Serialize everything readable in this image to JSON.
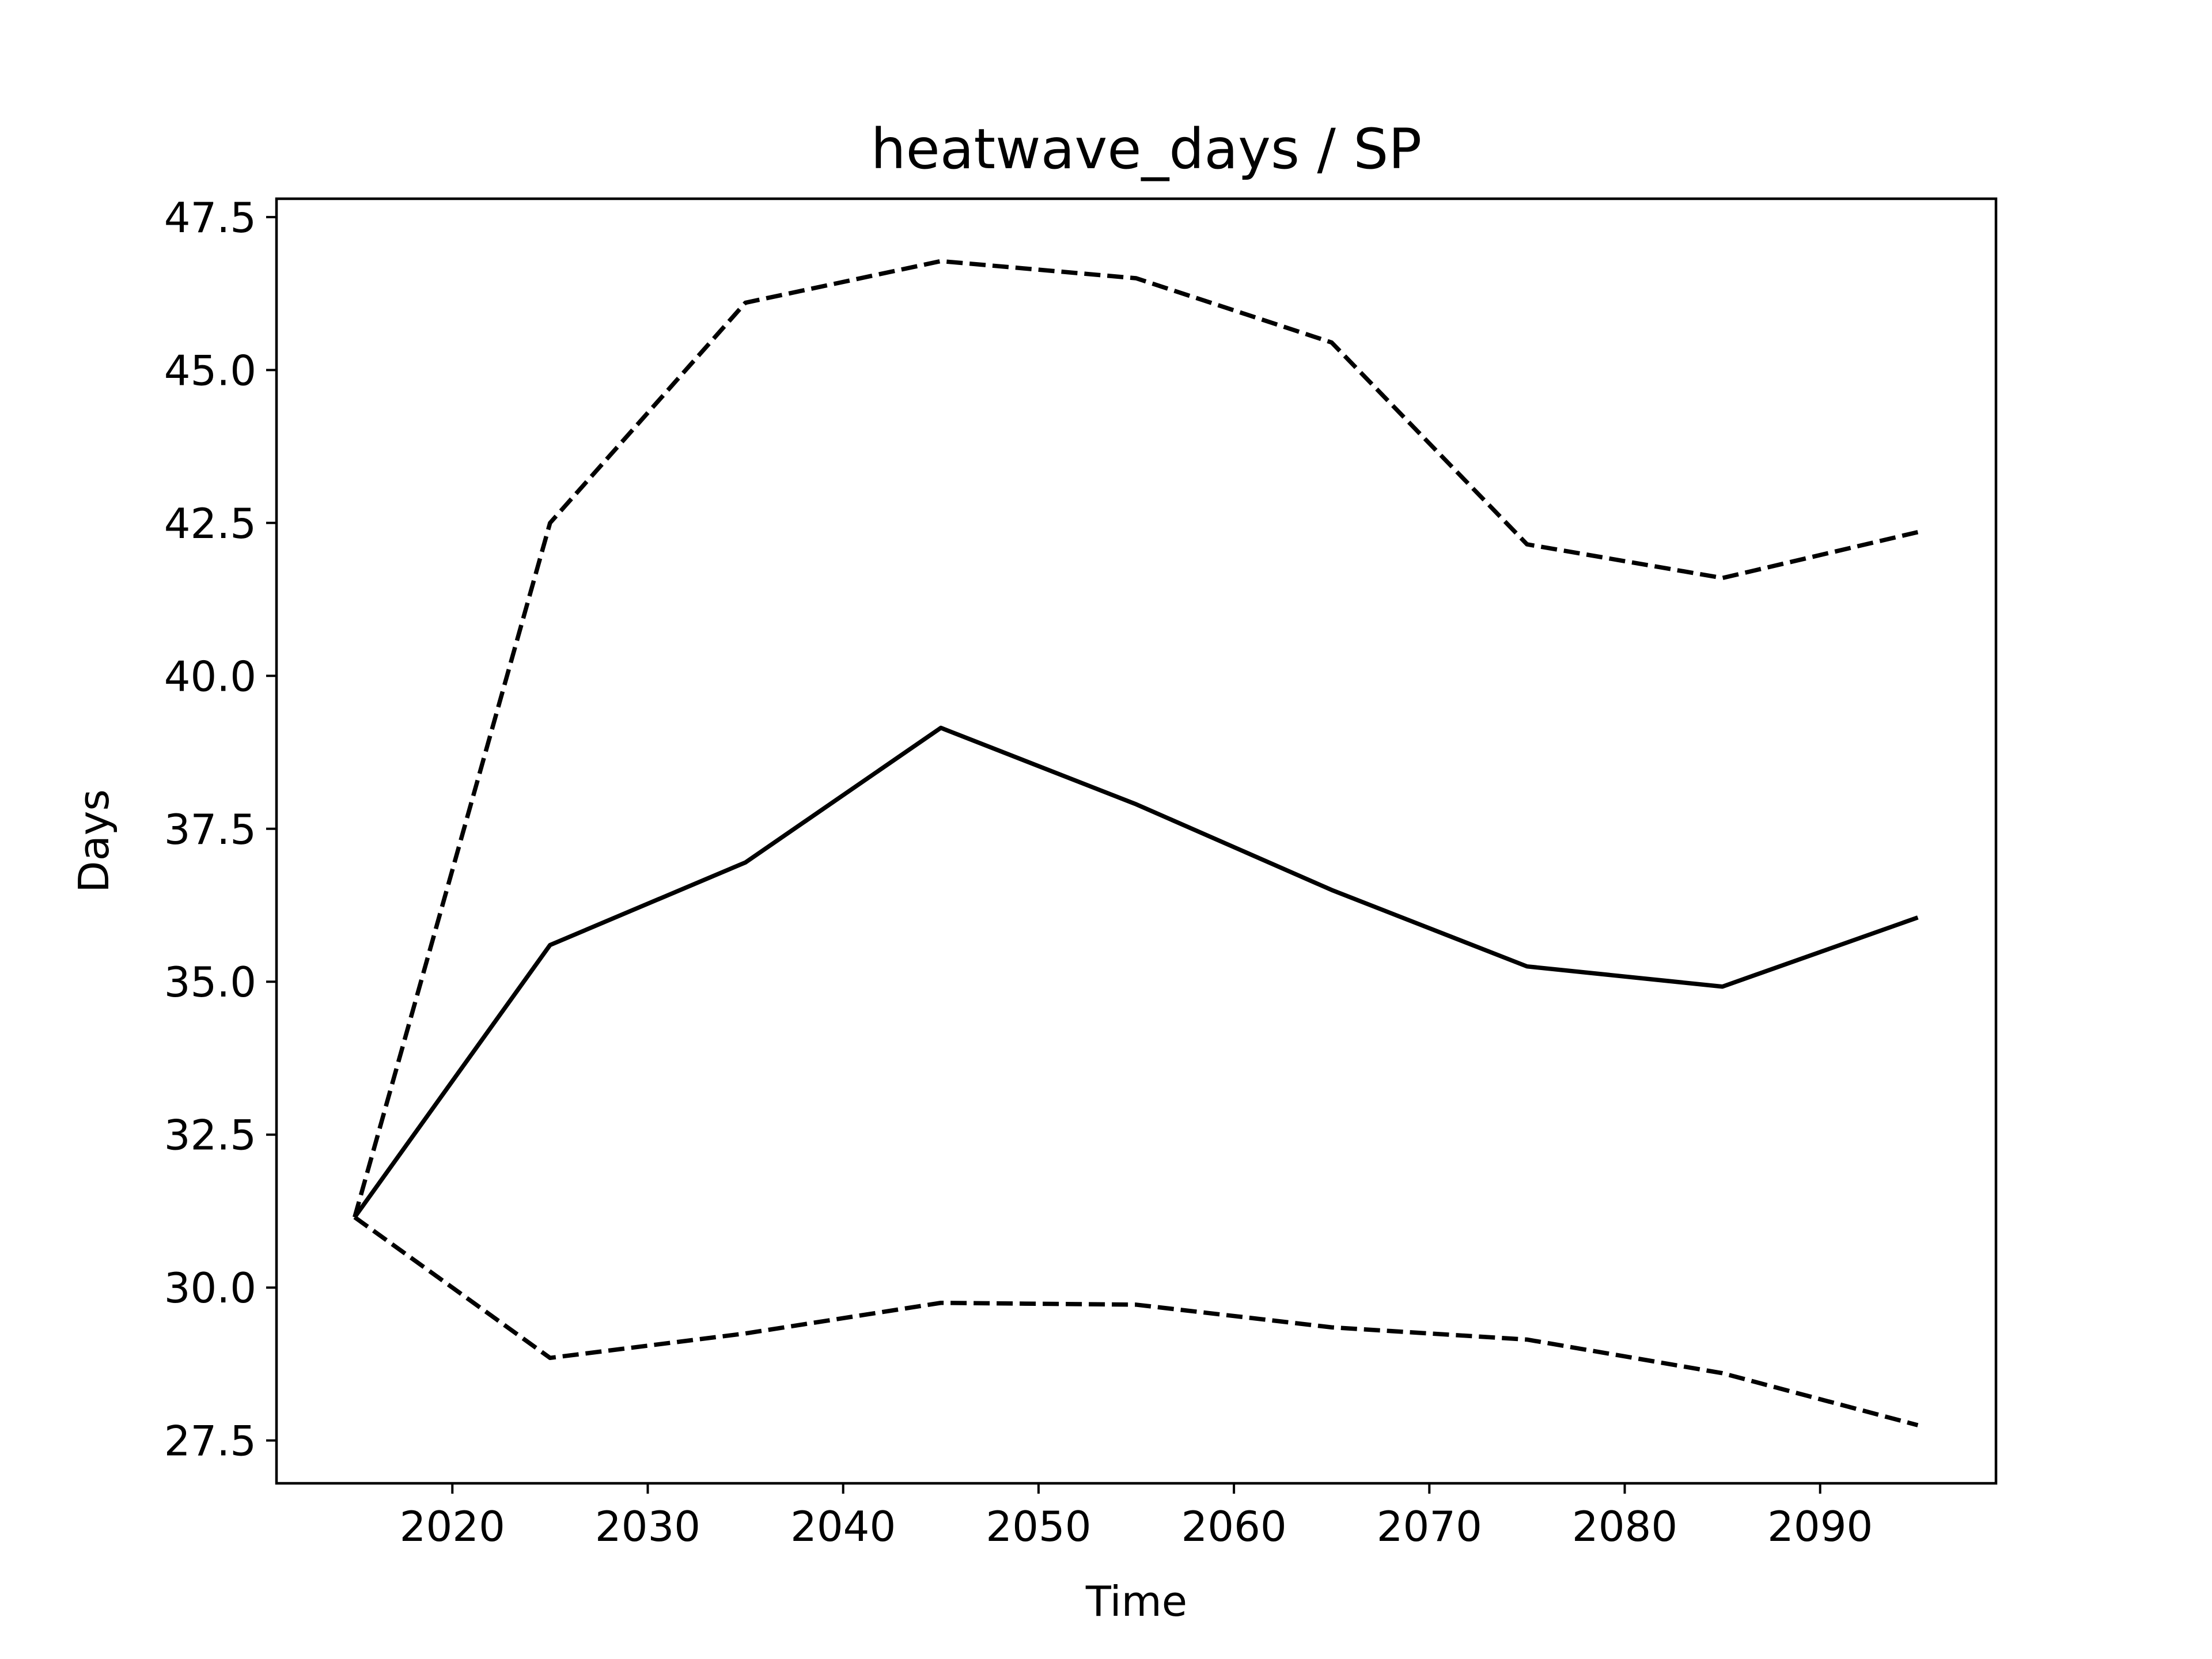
{
  "chart_data": {
    "type": "line",
    "title": "heatwave_days / SP",
    "xlabel": "Time",
    "ylabel": "Days",
    "xlim": [
      2011,
      2099
    ],
    "ylim": [
      26.8,
      47.8
    ],
    "xticks": [
      2020,
      2030,
      2040,
      2050,
      2060,
      2070,
      2080,
      2090
    ],
    "yticks": [
      27.5,
      30.0,
      32.5,
      35.0,
      37.5,
      40.0,
      42.5,
      45.0,
      47.5
    ],
    "grid": false,
    "legend": "none",
    "x": [
      2015,
      2025,
      2035,
      2045,
      2055,
      2065,
      2075,
      2085,
      2095
    ],
    "series": [
      {
        "style": "solid",
        "color": "#000000",
        "values": [
          31.15,
          35.6,
          36.95,
          39.15,
          37.9,
          36.5,
          35.25,
          34.92,
          36.05
        ]
      },
      {
        "style": "dashed",
        "color": "#000000",
        "values": [
          31.15,
          42.5,
          46.1,
          46.78,
          46.5,
          45.45,
          42.15,
          41.6,
          42.35
        ]
      },
      {
        "style": "dashed",
        "color": "#000000",
        "values": [
          31.15,
          28.85,
          29.25,
          29.75,
          29.72,
          29.35,
          29.15,
          28.6,
          27.75
        ]
      }
    ]
  }
}
